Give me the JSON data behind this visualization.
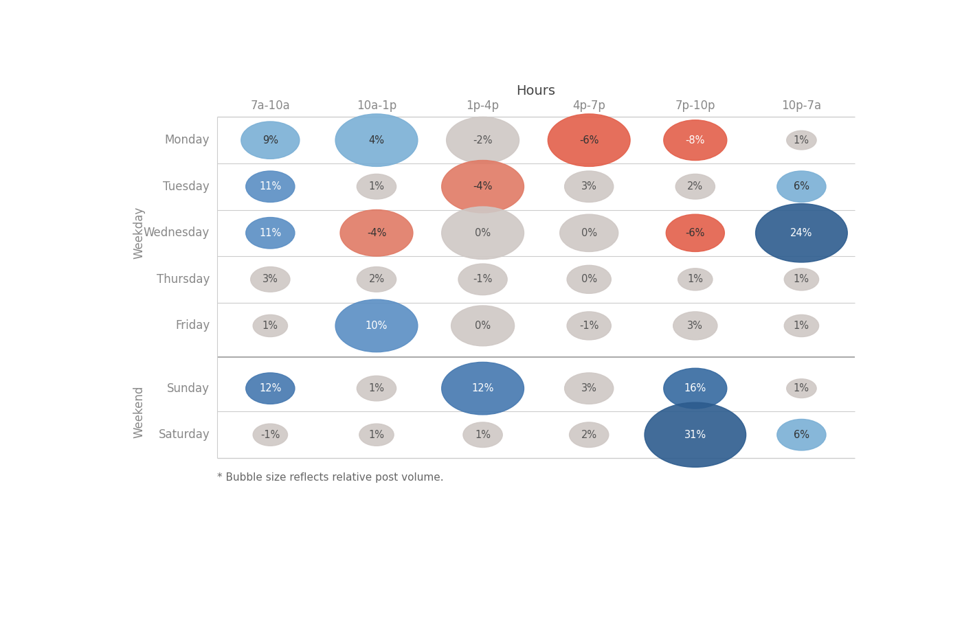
{
  "title": "Hours",
  "hours": [
    "7a-10a",
    "10a-1p",
    "1p-4p",
    "4p-7p",
    "7p-10p",
    "10p-7a"
  ],
  "weekdays": [
    "Monday",
    "Tuesday",
    "Wednesday",
    "Thursday",
    "Friday"
  ],
  "weekend_days": [
    "Sunday",
    "Saturday"
  ],
  "weekday_label": "Weekday",
  "weekend_label": "Weekend",
  "footnote": "* Bubble size reflects relative post volume.",
  "values": {
    "Monday": [
      9,
      4,
      -2,
      -6,
      -8,
      1
    ],
    "Tuesday": [
      11,
      1,
      -4,
      3,
      2,
      6
    ],
    "Wednesday": [
      11,
      -4,
      0,
      0,
      -6,
      24
    ],
    "Thursday": [
      3,
      2,
      -1,
      0,
      1,
      1
    ],
    "Friday": [
      1,
      10,
      0,
      -1,
      3,
      1
    ],
    "Sunday": [
      12,
      1,
      12,
      3,
      16,
      1
    ],
    "Saturday": [
      -1,
      1,
      1,
      2,
      31,
      6
    ]
  },
  "bubble_sizes": {
    "Monday": [
      9,
      14,
      12,
      14,
      10,
      3
    ],
    "Tuesday": [
      7,
      5,
      14,
      7,
      5,
      7
    ],
    "Wednesday": [
      7,
      12,
      14,
      9,
      9,
      16
    ],
    "Thursday": [
      5,
      5,
      7,
      6,
      4,
      4
    ],
    "Friday": [
      4,
      14,
      10,
      6,
      6,
      4
    ],
    "Sunday": [
      7,
      5,
      14,
      7,
      10,
      3
    ],
    "Saturday": [
      4,
      4,
      5,
      5,
      18,
      7
    ]
  },
  "bg_color": "#ffffff",
  "grid_color": "#cccccc",
  "separator_color": "#999999",
  "label_color": "#888888",
  "title_color": "#444444"
}
